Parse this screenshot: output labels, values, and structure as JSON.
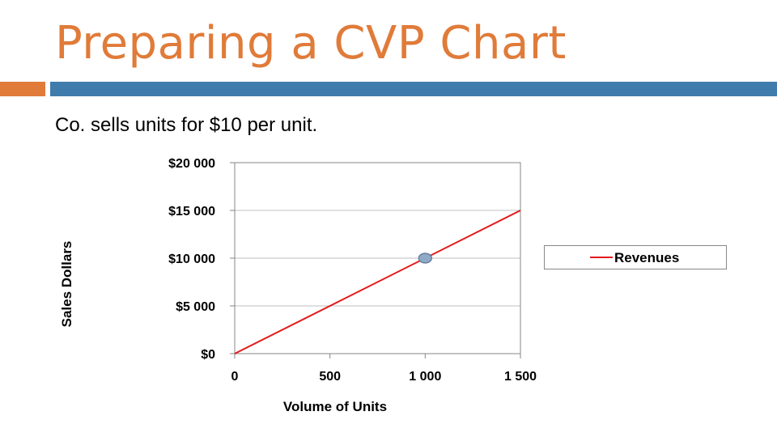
{
  "slide": {
    "title": "Preparing a CVP Chart",
    "subtitle": "Co. sells units for $10 per unit.",
    "accent_color": "#E07B39",
    "bar_color": "#3F7CAC"
  },
  "chart_data": {
    "type": "line",
    "xlabel": "Volume of Units",
    "ylabel": "Sales Dollars",
    "xlim": [
      0,
      1500
    ],
    "ylim": [
      0,
      20000
    ],
    "x_ticks": [
      0,
      500,
      1000,
      1500
    ],
    "x_tick_labels": [
      "0",
      "500",
      "1 000",
      "1 500"
    ],
    "y_ticks": [
      0,
      5000,
      10000,
      15000,
      20000
    ],
    "y_tick_labels": [
      "$0",
      "$5 000",
      "$10 000",
      "$15 000",
      "$20 000"
    ],
    "grid": true,
    "legend_position": "right",
    "series": [
      {
        "name": "Revenues",
        "color": "#E31A1C",
        "x": [
          0,
          1500
        ],
        "y": [
          0,
          15000
        ]
      }
    ],
    "highlight_point": {
      "x": 1000,
      "y": 10000,
      "color": "#8FA9C8"
    }
  }
}
